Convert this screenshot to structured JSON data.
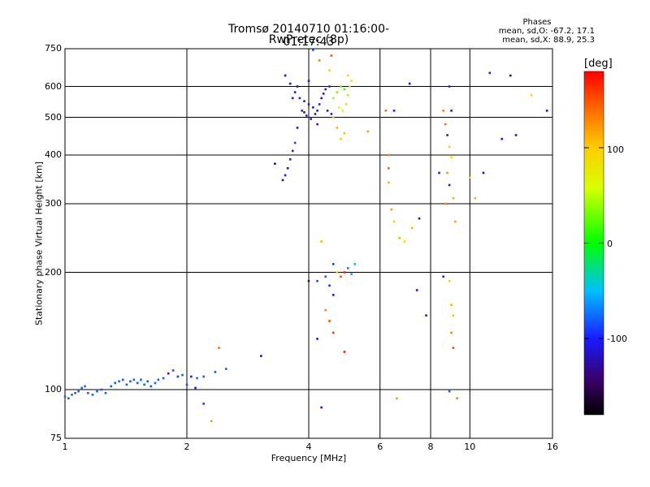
{
  "header": {
    "title_line1": "Tromsø 20140710 01:16:00-01:17:43",
    "title_line2": "RwPretec (8p)"
  },
  "phases_box": {
    "label": "Phases",
    "stat_o": "mean, sd,O: -67.2, 17.1",
    "stat_x": "mean, sd,X:  88.9, 25.3"
  },
  "colorbar": {
    "label": "[deg]",
    "ticks": [
      "100",
      "0",
      "-100"
    ],
    "tick_values": [
      100,
      0,
      -100
    ],
    "range": [
      -180,
      180
    ]
  },
  "chart_data": {
    "type": "scatter",
    "title": "Tromsø 20140710 01:16:00-01:17:43",
    "subtitle": "RwPretec (8p)",
    "xlabel": "Frequency [MHz]",
    "ylabel": "Stationary phase Virtual Height [km]",
    "x_scale": "log",
    "y_scale": "log",
    "xlim": [
      1,
      16
    ],
    "ylim": [
      75,
      750
    ],
    "x_ticks": [
      1,
      2,
      4,
      6,
      8,
      10,
      16
    ],
    "x_tick_labels": [
      "1",
      "2",
      "4",
      "6",
      "8",
      "10",
      "16"
    ],
    "y_ticks": [
      75,
      100,
      200,
      300,
      400,
      500,
      600,
      750
    ],
    "y_tick_labels": [
      "75",
      "100",
      "200",
      "300",
      "400",
      "500",
      "600",
      "750"
    ],
    "grid": true,
    "color_by": "phase [deg]",
    "series": [
      {
        "points": [
          [
            1.0,
            96,
            -80
          ],
          [
            1.02,
            95,
            -80
          ],
          [
            1.04,
            97,
            -78
          ],
          [
            1.06,
            98,
            -82
          ],
          [
            1.08,
            99,
            -80
          ],
          [
            1.1,
            101,
            -79
          ],
          [
            1.12,
            102,
            -81
          ],
          [
            1.14,
            98,
            -80
          ],
          [
            1.17,
            97,
            -78
          ],
          [
            1.2,
            99,
            -80
          ],
          [
            1.23,
            100,
            -82
          ],
          [
            1.26,
            98,
            -79
          ],
          [
            1.3,
            102,
            -80
          ],
          [
            1.33,
            104,
            -81
          ],
          [
            1.36,
            105,
            -78
          ],
          [
            1.39,
            106,
            -80
          ],
          [
            1.42,
            103,
            -82
          ],
          [
            1.45,
            105,
            -79
          ],
          [
            1.48,
            106,
            -80
          ],
          [
            1.51,
            104,
            -81
          ],
          [
            1.54,
            106,
            -80
          ],
          [
            1.57,
            103,
            -78
          ],
          [
            1.6,
            105,
            -80
          ],
          [
            1.63,
            102,
            -82
          ],
          [
            1.67,
            104,
            -79
          ],
          [
            1.7,
            106,
            -80
          ],
          [
            1.8,
            110,
            -110
          ],
          [
            1.95,
            109,
            -80
          ],
          [
            2.05,
            108,
            -100
          ],
          [
            2.12,
            107,
            -78
          ],
          [
            2.2,
            108,
            -80
          ],
          [
            2.35,
            111,
            -82
          ],
          [
            2.5,
            113,
            -80
          ],
          [
            3.05,
            122,
            -125
          ],
          [
            3.3,
            380,
            -130
          ],
          [
            3.45,
            345,
            -120
          ],
          [
            3.5,
            355,
            -105
          ],
          [
            3.55,
            370,
            -110
          ],
          [
            3.6,
            390,
            -100
          ],
          [
            3.65,
            410,
            -105
          ],
          [
            3.7,
            430,
            -90
          ],
          [
            3.75,
            470,
            -110
          ],
          [
            3.5,
            640,
            -120
          ],
          [
            3.6,
            610,
            -115
          ],
          [
            3.7,
            580,
            -110
          ],
          [
            3.8,
            560,
            -100
          ],
          [
            3.9,
            550,
            -105
          ],
          [
            4.0,
            540,
            -110
          ],
          [
            4.1,
            530,
            -100
          ],
          [
            4.2,
            520,
            -105
          ],
          [
            4.3,
            560,
            -110
          ],
          [
            4.4,
            590,
            -100
          ],
          [
            4.5,
            600,
            -95
          ],
          [
            3.85,
            520,
            -105
          ],
          [
            3.95,
            505,
            -110
          ],
          [
            4.05,
            495,
            -100
          ],
          [
            4.15,
            510,
            -105
          ],
          [
            3.75,
            600,
            -115
          ],
          [
            4.25,
            540,
            -100
          ],
          [
            4.35,
            575,
            -108
          ],
          [
            4.45,
            520,
            -112
          ],
          [
            4.55,
            510,
            -102
          ],
          [
            3.65,
            560,
            -110
          ],
          [
            4.0,
            620,
            -100
          ],
          [
            4.2,
            480,
            -105
          ],
          [
            4.6,
            560,
            40
          ],
          [
            4.7,
            580,
            30
          ],
          [
            4.8,
            600,
            35
          ],
          [
            4.9,
            590,
            20
          ],
          [
            5.0,
            570,
            45
          ],
          [
            4.75,
            530,
            55
          ],
          [
            4.85,
            520,
            60
          ],
          [
            4.95,
            540,
            50
          ],
          [
            5.05,
            600,
            70
          ],
          [
            4.6,
            500,
            95
          ],
          [
            4.7,
            470,
            110
          ],
          [
            4.8,
            440,
            100
          ],
          [
            4.9,
            455,
            105
          ],
          [
            5.0,
            640,
            90
          ],
          [
            5.1,
            620,
            80
          ],
          [
            4.5,
            660,
            100
          ],
          [
            4.55,
            720,
            150
          ],
          [
            4.1,
            745,
            -90
          ],
          [
            4.25,
            700,
            135
          ],
          [
            3.9,
            515,
            -110
          ],
          [
            4.3,
            240,
            110
          ],
          [
            4.6,
            210,
            -90
          ],
          [
            4.7,
            200,
            100
          ],
          [
            4.8,
            195,
            150
          ],
          [
            4.9,
            200,
            170
          ],
          [
            5.0,
            205,
            -70
          ],
          [
            5.1,
            198,
            -60
          ],
          [
            5.2,
            210,
            -40
          ],
          [
            4.4,
            195,
            -80
          ],
          [
            4.5,
            185,
            -95
          ],
          [
            4.6,
            175,
            -110
          ],
          [
            4.2,
            190,
            -85
          ],
          [
            4.0,
            190,
            -120
          ],
          [
            4.2,
            135,
            -110
          ],
          [
            4.4,
            160,
            130
          ],
          [
            4.5,
            150,
            150
          ],
          [
            4.6,
            140,
            160
          ],
          [
            4.9,
            125,
            170
          ],
          [
            4.3,
            90,
            -110
          ],
          [
            5.6,
            460,
            120
          ],
          [
            6.2,
            520,
            140
          ],
          [
            6.3,
            400,
            130
          ],
          [
            6.3,
            370,
            140
          ],
          [
            6.3,
            340,
            110
          ],
          [
            6.4,
            290,
            120
          ],
          [
            6.5,
            270,
            100
          ],
          [
            6.7,
            245,
            110
          ],
          [
            6.9,
            240,
            80
          ],
          [
            7.2,
            260,
            110
          ],
          [
            7.5,
            275,
            -120
          ],
          [
            7.4,
            180,
            -110
          ],
          [
            6.5,
            520,
            -100
          ],
          [
            7.1,
            610,
            -110
          ],
          [
            8.6,
            520,
            130
          ],
          [
            8.7,
            480,
            140
          ],
          [
            8.8,
            450,
            -120
          ],
          [
            8.9,
            420,
            100
          ],
          [
            9.0,
            395,
            80
          ],
          [
            8.8,
            360,
            120
          ],
          [
            8.9,
            335,
            -110
          ],
          [
            8.7,
            300,
            130
          ],
          [
            9.1,
            310,
            110
          ],
          [
            9.2,
            270,
            120
          ],
          [
            8.6,
            195,
            -100
          ],
          [
            8.9,
            190,
            100
          ],
          [
            9.0,
            165,
            110
          ],
          [
            9.1,
            155,
            100
          ],
          [
            9.0,
            140,
            130
          ],
          [
            9.1,
            128,
            150
          ],
          [
            8.4,
            360,
            -110
          ],
          [
            8.9,
            600,
            -100
          ],
          [
            9.0,
            520,
            -105
          ],
          [
            10.0,
            350,
            100
          ],
          [
            10.3,
            310,
            110
          ],
          [
            10.8,
            360,
            -120
          ],
          [
            11.2,
            650,
            -100
          ],
          [
            12.0,
            440,
            -110
          ],
          [
            12.6,
            640,
            -130
          ],
          [
            13.0,
            450,
            -115
          ],
          [
            14.2,
            570,
            90
          ],
          [
            15.5,
            520,
            -110
          ],
          [
            2.0,
            103,
            -80
          ],
          [
            2.1,
            101,
            -110
          ],
          [
            1.9,
            108,
            -90
          ],
          [
            1.85,
            112,
            -85
          ],
          [
            1.75,
            107,
            -82
          ],
          [
            2.2,
            92,
            -90
          ],
          [
            2.3,
            83,
            120
          ],
          [
            2.4,
            128,
            140
          ],
          [
            6.6,
            95,
            120
          ],
          [
            9.3,
            95,
            130
          ],
          [
            8.9,
            99,
            -80
          ],
          [
            7.8,
            155,
            -110
          ]
        ]
      }
    ]
  }
}
